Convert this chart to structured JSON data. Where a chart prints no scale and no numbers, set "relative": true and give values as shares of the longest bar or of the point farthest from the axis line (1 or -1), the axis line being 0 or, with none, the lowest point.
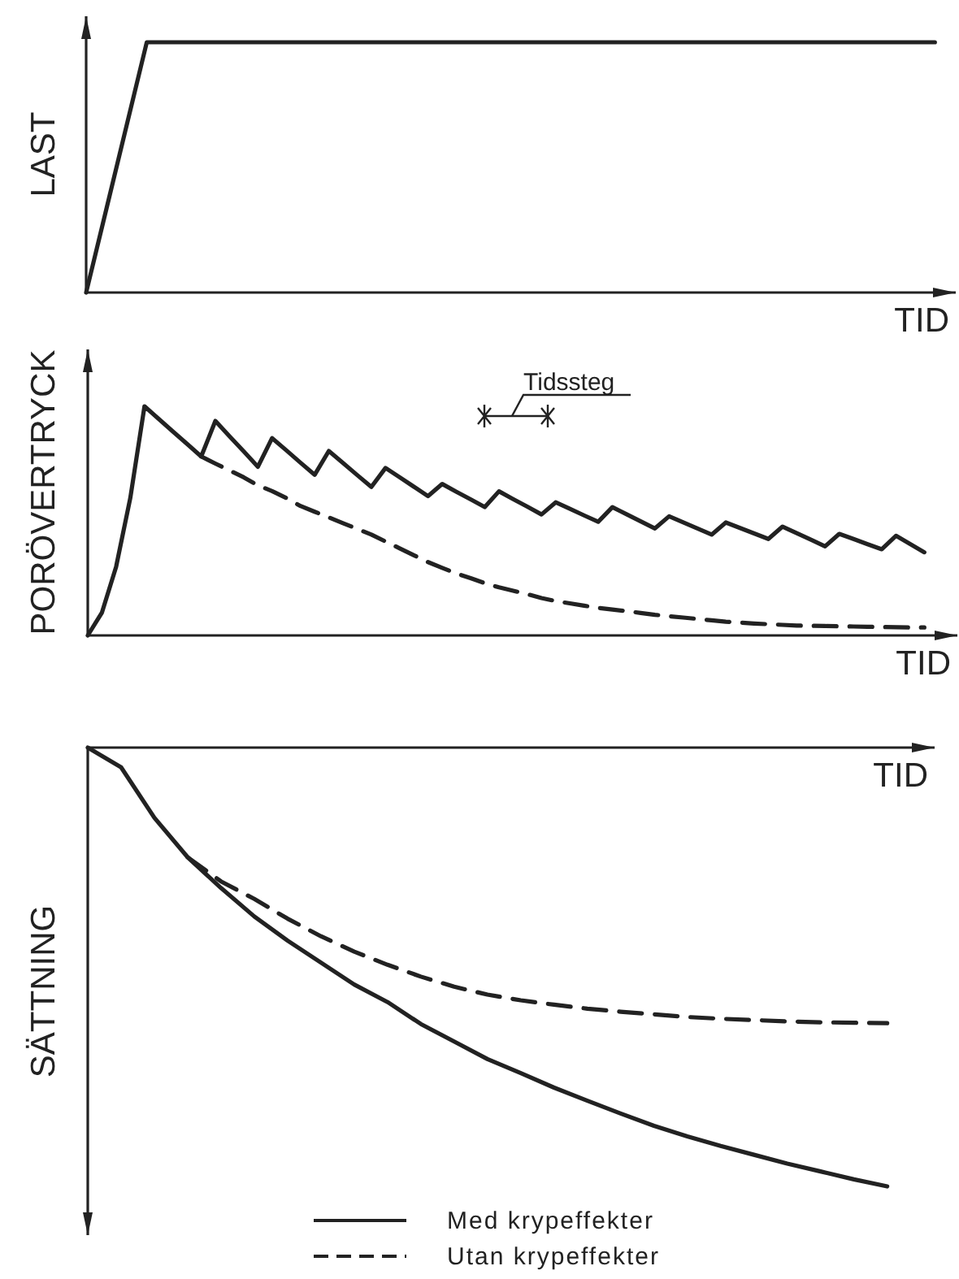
{
  "chart_data": [
    {
      "type": "line",
      "ylabel": "LAST",
      "xlabel": "TID",
      "relative": true,
      "legend": false,
      "categories": [
        null,
        null,
        null,
        null,
        null,
        null,
        null,
        null,
        null,
        null,
        null,
        null,
        null,
        null,
        null
      ],
      "series": [
        {
          "color": "#222222",
          "line_style": "solid",
          "values": [
            0,
            1,
            1,
            1,
            1,
            1,
            1,
            1,
            1,
            1,
            1,
            1,
            1,
            1,
            1
          ]
        }
      ]
    },
    {
      "type": "line",
      "ylabel": "PORÖVERTRYCK",
      "xlabel": "TID",
      "relative": true,
      "legend": false,
      "annotations": [
        "Tidssteg"
      ],
      "categories": [
        null,
        null,
        null,
        null,
        null,
        null,
        null,
        null,
        null,
        null,
        null,
        null,
        null,
        null,
        null,
        null,
        null,
        null,
        null,
        null,
        null,
        null,
        null,
        null,
        null,
        null,
        null,
        null,
        null,
        null,
        null,
        null,
        null,
        null,
        null,
        null,
        null,
        null,
        null,
        null,
        null,
        null,
        null,
        null,
        null,
        null,
        null,
        null,
        null,
        null,
        null,
        null,
        null,
        null,
        null,
        null,
        null,
        null,
        null,
        null
      ],
      "series": [
        {
          "color": "#222222",
          "line_style": "solid",
          "values": [
            0,
            0.1,
            0.3,
            0.6,
            1,
            0.945,
            0.89,
            0.836,
            0.781,
            0.936,
            0.869,
            0.803,
            0.736,
            0.861,
            0.808,
            0.754,
            0.701,
            0.805,
            0.753,
            0.7,
            0.648,
            0.731,
            0.69,
            0.649,
            0.608,
            0.661,
            0.627,
            0.594,
            0.56,
            0.629,
            0.595,
            0.562,
            0.528,
            0.581,
            0.553,
            0.524,
            0.496,
            0.56,
            0.529,
            0.498,
            0.467,
            0.52,
            0.493,
            0.467,
            0.44,
            0.493,
            0.469,
            0.445,
            0.421,
            0.475,
            0.446,
            0.418,
            0.389,
            0.443,
            0.421,
            0.398,
            0.376,
            0.435,
            0.399,
            0.363
          ]
        },
        {
          "color": "#222222",
          "line_style": "dashed",
          "values": [
            null,
            null,
            null,
            null,
            null,
            null,
            null,
            null,
            0.781,
            0.75,
            0.72,
            0.69,
            0.655,
            0.63,
            0.6,
            0.565,
            0.54,
            0.515,
            0.49,
            0.465,
            0.44,
            0.41,
            0.38,
            0.35,
            0.32,
            0.295,
            0.27,
            0.25,
            0.228,
            0.21,
            0.195,
            0.18,
            0.163,
            0.15,
            0.14,
            0.13,
            0.12,
            0.113,
            0.106,
            0.098,
            0.09,
            0.084,
            0.078,
            0.072,
            0.066,
            0.06,
            0.056,
            0.052,
            0.049,
            0.046,
            0.043,
            0.042,
            0.041,
            0.04,
            0.039,
            0.038,
            0.037,
            0.036,
            0.035,
            0.035
          ]
        }
      ]
    },
    {
      "type": "line",
      "ylabel": "SÄTTNING",
      "xlabel": "TID",
      "relative": true,
      "legend": "bottom",
      "categories": [
        null,
        null,
        null,
        null,
        null,
        null,
        null,
        null,
        null,
        null,
        null,
        null,
        null,
        null,
        null,
        null,
        null,
        null,
        null,
        null,
        null,
        null,
        null,
        null,
        null
      ],
      "series": [
        {
          "name": "Med krypeffekter",
          "color": "#222222",
          "line_style": "solid",
          "values": [
            0,
            -0.045,
            -0.16,
            -0.25,
            -0.32,
            -0.385,
            -0.44,
            -0.49,
            -0.54,
            -0.58,
            -0.63,
            -0.67,
            -0.71,
            -0.742,
            -0.775,
            -0.805,
            -0.834,
            -0.862,
            -0.886,
            -0.908,
            -0.928,
            -0.948,
            -0.966,
            -0.984,
            -1
          ]
        },
        {
          "name": "Utan krypeffekter",
          "color": "#222222",
          "line_style": "dashed",
          "values": [
            null,
            null,
            null,
            -0.25,
            -0.305,
            -0.345,
            -0.39,
            -0.43,
            -0.465,
            -0.495,
            -0.522,
            -0.545,
            -0.563,
            -0.576,
            -0.586,
            -0.595,
            -0.602,
            -0.608,
            -0.614,
            -0.618,
            -0.621,
            -0.624,
            -0.626,
            -0.627,
            -0.628
          ]
        }
      ]
    }
  ]
}
